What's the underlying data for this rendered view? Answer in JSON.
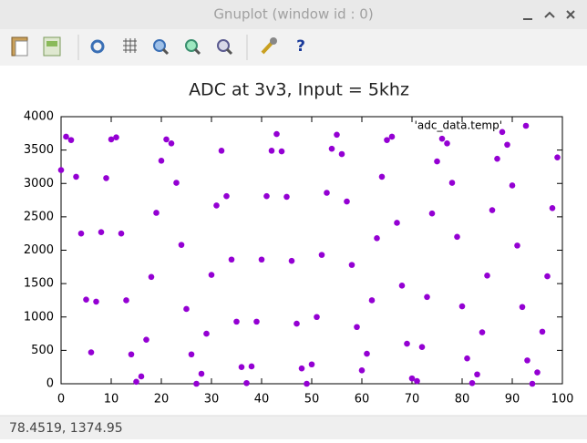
{
  "window": {
    "title": "Gnuplot (window id : 0)"
  },
  "toolbar": {
    "help": "?"
  },
  "status_bar": {
    "text": "78.4519,  1374.95"
  },
  "chart_data": {
    "type": "scatter",
    "title": "ADC at 3v3, Input = 5khz",
    "x": [
      0,
      1,
      2,
      3,
      4,
      5,
      6,
      7,
      8,
      9,
      10,
      11,
      12,
      13,
      14,
      15,
      16,
      17,
      18,
      19,
      20,
      21,
      22,
      23,
      24,
      25,
      26,
      27,
      28,
      29,
      30,
      31,
      32,
      33,
      34,
      35,
      36,
      37,
      38,
      39,
      40,
      41,
      42,
      43,
      44,
      45,
      46,
      47,
      48,
      49,
      50,
      51,
      52,
      53,
      54,
      55,
      56,
      57,
      58,
      59,
      60,
      61,
      62,
      63,
      64,
      65,
      66,
      67,
      68,
      69,
      70,
      71,
      72,
      73,
      74,
      75,
      76,
      77,
      78,
      79,
      80,
      81,
      82,
      83,
      84,
      85,
      86,
      87,
      88,
      89,
      90,
      91,
      92,
      93,
      94,
      95,
      96,
      97,
      98,
      99
    ],
    "series": [
      {
        "name": "'adc_data.temp'",
        "color": "#9400d3",
        "values": [
          3200,
          3700,
          3650,
          3100,
          2250,
          1260,
          470,
          1230,
          2270,
          3080,
          3660,
          3690,
          2250,
          1250,
          440,
          30,
          110,
          660,
          1600,
          2560,
          3340,
          3660,
          3600,
          3010,
          2080,
          1120,
          440,
          0,
          150,
          750,
          1630,
          2670,
          3490,
          2810,
          1860,
          930,
          250,
          10,
          260,
          930,
          1860,
          2810,
          3490,
          3740,
          3480,
          2800,
          1840,
          900,
          230,
          0,
          290,
          1000,
          1930,
          2860,
          3520,
          3730,
          3440,
          2730,
          1780,
          850,
          200,
          450,
          1250,
          2180,
          3100,
          3650,
          3700,
          2410,
          1470,
          600,
          80,
          40,
          550,
          1300,
          2550,
          3330,
          3670,
          3600,
          3010,
          2200,
          1160,
          380,
          10,
          140,
          770,
          1620,
          2600,
          3370,
          3770,
          3580,
          2970,
          2070,
          1150,
          350,
          0,
          170,
          780,
          1610,
          2630,
          3390
        ]
      }
    ],
    "xlim": [
      0,
      100
    ],
    "xticks": [
      0,
      10,
      20,
      30,
      40,
      50,
      60,
      70,
      80,
      90,
      100
    ],
    "ylim": [
      0,
      4000
    ],
    "yticks": [
      0,
      500,
      1000,
      1500,
      2000,
      2500,
      3000,
      3500,
      4000
    ],
    "grid": false,
    "legend": "top-right"
  }
}
